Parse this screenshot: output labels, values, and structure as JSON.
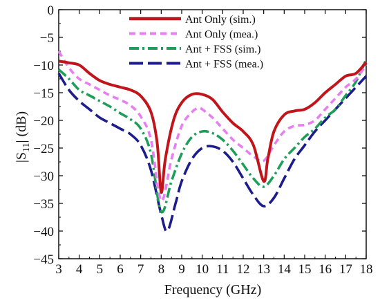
{
  "chart_data": {
    "type": "line",
    "xlabel": "Frequency (GHz)",
    "ylabel_main": "|S",
    "ylabel_sub": "11",
    "ylabel_tail": "| (dB)",
    "xlim": [
      3,
      18
    ],
    "ylim": [
      -45,
      0
    ],
    "xticks": [
      3,
      4,
      5,
      6,
      7,
      8,
      9,
      10,
      11,
      12,
      13,
      14,
      15,
      16,
      17,
      18
    ],
    "yticks": [
      0,
      -5,
      -10,
      -15,
      -20,
      -25,
      -30,
      -35,
      -40,
      -45
    ],
    "grid": false,
    "legend_position": "top-right",
    "series": [
      {
        "name": "Ant Only (sim.)",
        "color": "#c0161b",
        "dash": "solid",
        "points": [
          [
            3,
            -9.3
          ],
          [
            3.5,
            -9.6
          ],
          [
            4,
            -10
          ],
          [
            4.5,
            -11.5
          ],
          [
            5,
            -12.8
          ],
          [
            5.5,
            -13.5
          ],
          [
            6,
            -14
          ],
          [
            6.5,
            -14.5
          ],
          [
            7,
            -15.6
          ],
          [
            7.5,
            -18.5
          ],
          [
            7.8,
            -24
          ],
          [
            8,
            -33
          ],
          [
            8.2,
            -27
          ],
          [
            8.6,
            -20
          ],
          [
            9,
            -16.8
          ],
          [
            9.5,
            -15.3
          ],
          [
            10,
            -15.3
          ],
          [
            10.5,
            -16.2
          ],
          [
            11,
            -18.5
          ],
          [
            11.5,
            -20.5
          ],
          [
            12,
            -22
          ],
          [
            12.5,
            -24.5
          ],
          [
            13,
            -31
          ],
          [
            13.2,
            -27
          ],
          [
            13.5,
            -22
          ],
          [
            14,
            -19
          ],
          [
            14.5,
            -18.3
          ],
          [
            15,
            -18
          ],
          [
            15.5,
            -16.8
          ],
          [
            16,
            -15
          ],
          [
            16.5,
            -13.5
          ],
          [
            17,
            -12
          ],
          [
            17.5,
            -11.5
          ],
          [
            18,
            -9.5
          ]
        ]
      },
      {
        "name": "Ant Only (mea.)",
        "color": "#e77ff2",
        "dash": "dash",
        "points": [
          [
            3,
            -7.5
          ],
          [
            3.5,
            -10.5
          ],
          [
            4,
            -12.5
          ],
          [
            4.5,
            -13.5
          ],
          [
            5,
            -14.5
          ],
          [
            5.5,
            -15.5
          ],
          [
            6,
            -16.3
          ],
          [
            6.5,
            -17.3
          ],
          [
            7,
            -19.3
          ],
          [
            7.5,
            -23.5
          ],
          [
            8,
            -34.5
          ],
          [
            8.5,
            -27
          ],
          [
            9,
            -21
          ],
          [
            9.5,
            -18.5
          ],
          [
            9.8,
            -17.8
          ],
          [
            10,
            -18
          ],
          [
            10.5,
            -19.5
          ],
          [
            11,
            -21.5
          ],
          [
            11.5,
            -23.5
          ],
          [
            12,
            -25
          ],
          [
            12.5,
            -26.5
          ],
          [
            13,
            -27.3
          ],
          [
            13.5,
            -24.5
          ],
          [
            14,
            -22
          ],
          [
            14.5,
            -21
          ],
          [
            15,
            -20.8
          ],
          [
            15.5,
            -20
          ],
          [
            16,
            -18
          ],
          [
            16.5,
            -16
          ],
          [
            17,
            -14
          ],
          [
            17.5,
            -12.5
          ],
          [
            18,
            -10
          ]
        ]
      },
      {
        "name": "Ant + FSS (sim.)",
        "color": "#1f9e5a",
        "dash": "dashdot",
        "points": [
          [
            3,
            -10.8
          ],
          [
            3.5,
            -12.5
          ],
          [
            4,
            -14.5
          ],
          [
            4.5,
            -15.5
          ],
          [
            5,
            -16.5
          ],
          [
            5.5,
            -17.5
          ],
          [
            6,
            -18.7
          ],
          [
            6.5,
            -19.8
          ],
          [
            7,
            -21.5
          ],
          [
            7.5,
            -26
          ],
          [
            8,
            -36.5
          ],
          [
            8.5,
            -31
          ],
          [
            9,
            -26
          ],
          [
            9.5,
            -23
          ],
          [
            10,
            -22
          ],
          [
            10.5,
            -22.3
          ],
          [
            11,
            -23.5
          ],
          [
            11.5,
            -25.5
          ],
          [
            12,
            -28
          ],
          [
            12.5,
            -30.5
          ],
          [
            13,
            -32
          ],
          [
            13.5,
            -30
          ],
          [
            14,
            -27
          ],
          [
            14.5,
            -25
          ],
          [
            15,
            -23
          ],
          [
            15.5,
            -21.5
          ],
          [
            16,
            -19.5
          ],
          [
            16.5,
            -18
          ],
          [
            17,
            -15.5
          ],
          [
            17.5,
            -13
          ],
          [
            18,
            -9
          ]
        ]
      },
      {
        "name": "Ant + FSS (mea.)",
        "color": "#1c1c8c",
        "dash": "longdash",
        "points": [
          [
            3,
            -11.5
          ],
          [
            3.5,
            -14.5
          ],
          [
            4,
            -16.5
          ],
          [
            4.5,
            -18
          ],
          [
            5,
            -19.5
          ],
          [
            5.5,
            -20.5
          ],
          [
            6,
            -21.5
          ],
          [
            6.5,
            -22.5
          ],
          [
            7,
            -24.5
          ],
          [
            7.5,
            -29
          ],
          [
            8,
            -37
          ],
          [
            8.3,
            -40
          ],
          [
            8.7,
            -35
          ],
          [
            9,
            -31
          ],
          [
            9.5,
            -27
          ],
          [
            10,
            -25
          ],
          [
            10.5,
            -24.7
          ],
          [
            11,
            -25.5
          ],
          [
            11.5,
            -27.5
          ],
          [
            12,
            -30.5
          ],
          [
            12.5,
            -33.5
          ],
          [
            13,
            -35.5
          ],
          [
            13.5,
            -34
          ],
          [
            14,
            -30.5
          ],
          [
            14.5,
            -27
          ],
          [
            15,
            -24.5
          ],
          [
            15.5,
            -22
          ],
          [
            16,
            -20
          ],
          [
            16.5,
            -18
          ],
          [
            17,
            -16
          ],
          [
            17.5,
            -14
          ],
          [
            18,
            -12
          ]
        ]
      }
    ]
  }
}
